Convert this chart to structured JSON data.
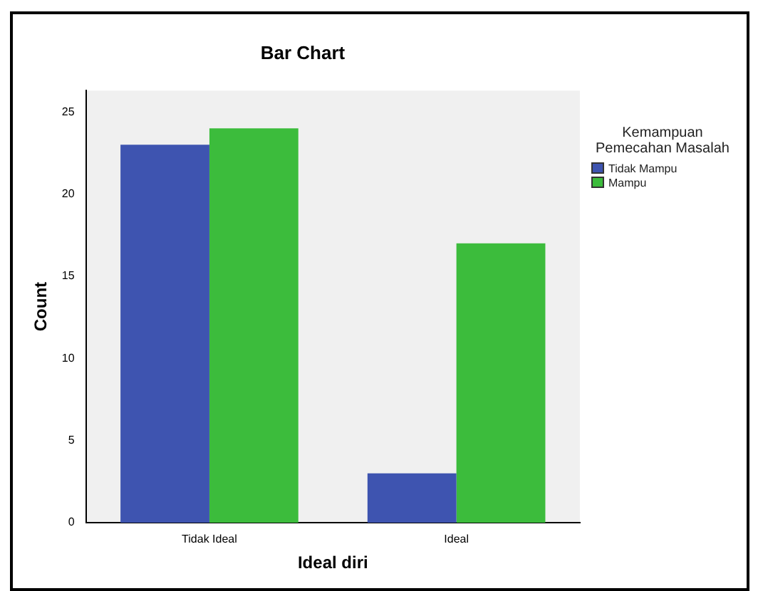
{
  "chart_data": {
    "type": "bar",
    "title": "Bar Chart",
    "xlabel": "Ideal diri",
    "ylabel": "Count",
    "legend_title": "Kemampuan Pemecahan Masalah",
    "categories": [
      "Tidak Ideal",
      "Ideal"
    ],
    "series": [
      {
        "name": "Tidak Mampu",
        "color": "#3e54b0",
        "values": [
          23,
          3
        ]
      },
      {
        "name": "Mampu",
        "color": "#3cbc3c",
        "values": [
          24,
          17
        ]
      }
    ],
    "ylim": [
      0,
      26.3
    ],
    "yticks": [
      0,
      5,
      10,
      15,
      20,
      25
    ],
    "grid": false,
    "legend": "top right"
  }
}
